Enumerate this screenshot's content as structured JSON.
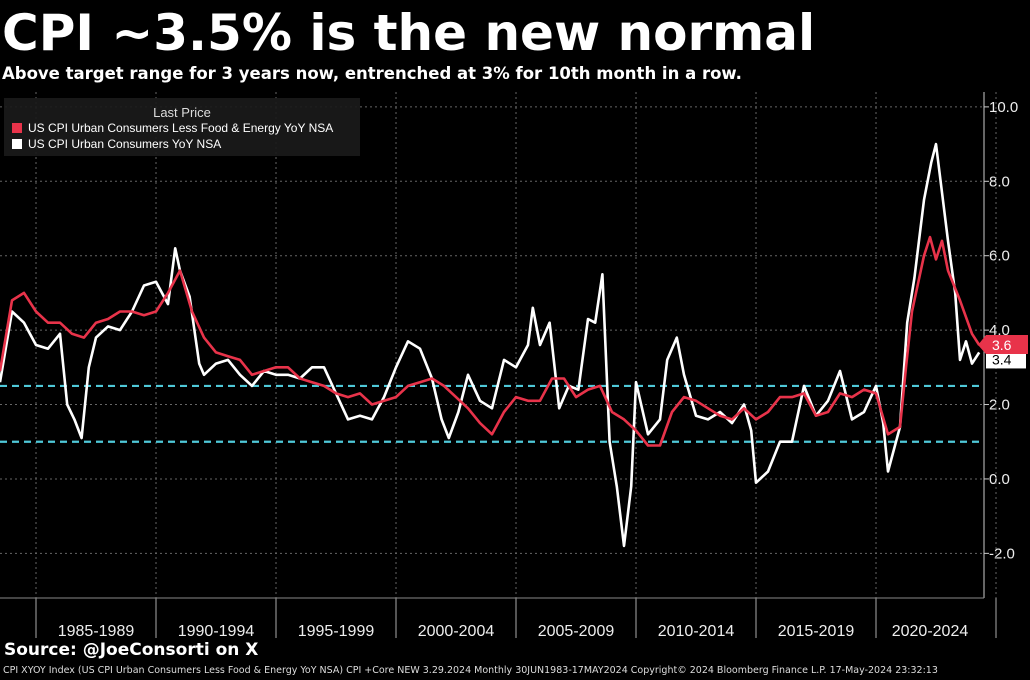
{
  "header": {
    "title": "CPI ~3.5% is the new normal",
    "subtitle": "Above target range for 3 years now, entrenched at 3% for 10th month in a row."
  },
  "source": "Source: @JoeConsorti on X",
  "footer": "CPI XYOY Index (US CPI Urban Consumers Less Food & Energy YoY NSA) CPI +Core NEW 3.29.2024  Monthly 30JUN1983-17MAY2024  Copyright© 2024 Bloomberg Finance L.P.  17-May-2024 23:32:13",
  "chart_data": {
    "type": "line",
    "legend": {
      "title": "Last Price",
      "placement": "top-left",
      "entries": [
        "US CPI Urban Consumers Less Food & Energy YoY NSA",
        "US CPI Urban Consumers YoY NSA"
      ]
    },
    "x_tick_labels": [
      "1985-1989",
      "1990-1994",
      "1995-1999",
      "2000-2004",
      "2005-2009",
      "2010-2014",
      "2015-2019",
      "2020-2024"
    ],
    "y_ticks": [
      -2.0,
      0.0,
      2.0,
      4.0,
      6.0,
      8.0,
      10.0
    ],
    "y_tick_labels": [
      "-2.0",
      "0.0",
      "2.0",
      "4.0",
      "6.0",
      "8.0",
      "10.0"
    ],
    "ylim": [
      -3.2,
      10.4
    ],
    "xlim": [
      1983.5,
      2024.5
    ],
    "grid": true,
    "reference_lines": [
      2.5,
      1.0
    ],
    "last_values": {
      "core": "3.6",
      "headline": "3.4"
    },
    "colors": {
      "core": "#e8334a",
      "headline": "#ffffff",
      "reference": "#4fc8d8",
      "grid": "#666666"
    },
    "series": [
      {
        "name": "US CPI Urban Consumers Less Food & Energy YoY NSA",
        "x": [
          1983.5,
          1984.0,
          1984.5,
          1985.0,
          1985.5,
          1986.0,
          1986.5,
          1987.0,
          1987.5,
          1988.0,
          1988.5,
          1989.0,
          1989.5,
          1990.0,
          1990.5,
          1991.0,
          1991.5,
          1992.0,
          1992.5,
          1993.0,
          1993.5,
          1994.0,
          1994.5,
          1995.0,
          1995.5,
          1996.0,
          1996.5,
          1997.0,
          1997.5,
          1998.0,
          1998.5,
          1999.0,
          1999.5,
          2000.0,
          2000.5,
          2001.0,
          2001.5,
          2002.0,
          2002.5,
          2003.0,
          2003.5,
          2004.0,
          2004.5,
          2005.0,
          2005.5,
          2006.0,
          2006.5,
          2007.0,
          2007.5,
          2008.0,
          2008.5,
          2009.0,
          2009.5,
          2010.0,
          2010.5,
          2011.0,
          2011.5,
          2012.0,
          2012.5,
          2013.0,
          2013.5,
          2014.0,
          2014.5,
          2015.0,
          2015.5,
          2016.0,
          2016.5,
          2017.0,
          2017.5,
          2018.0,
          2018.5,
          2019.0,
          2019.5,
          2020.0,
          2020.5,
          2021.0,
          2021.25,
          2021.5,
          2022.0,
          2022.25,
          2022.5,
          2022.75,
          2023.0,
          2023.5,
          2024.0,
          2024.3
        ],
        "values": [
          2.9,
          4.8,
          5.0,
          4.5,
          4.2,
          4.2,
          3.9,
          3.8,
          4.2,
          4.3,
          4.5,
          4.5,
          4.4,
          4.5,
          5.0,
          5.6,
          4.5,
          3.8,
          3.4,
          3.3,
          3.2,
          2.8,
          2.9,
          3.0,
          3.0,
          2.7,
          2.6,
          2.5,
          2.3,
          2.2,
          2.3,
          2.0,
          2.1,
          2.2,
          2.5,
          2.6,
          2.7,
          2.5,
          2.2,
          1.9,
          1.5,
          1.2,
          1.8,
          2.2,
          2.1,
          2.1,
          2.7,
          2.7,
          2.2,
          2.4,
          2.5,
          1.8,
          1.6,
          1.3,
          0.9,
          0.9,
          1.8,
          2.2,
          2.1,
          1.9,
          1.7,
          1.6,
          1.9,
          1.6,
          1.8,
          2.2,
          2.2,
          2.3,
          1.7,
          1.8,
          2.3,
          2.2,
          2.4,
          2.3,
          1.2,
          1.4,
          3.0,
          4.5,
          6.0,
          6.5,
          5.9,
          6.4,
          5.6,
          4.8,
          3.9,
          3.6
        ]
      },
      {
        "name": "US CPI Urban Consumers YoY NSA",
        "x": [
          1983.5,
          1984.0,
          1984.5,
          1985.0,
          1985.5,
          1986.0,
          1986.3,
          1986.6,
          1986.9,
          1987.2,
          1987.5,
          1988.0,
          1988.5,
          1989.0,
          1989.5,
          1990.0,
          1990.5,
          1990.8,
          1991.0,
          1991.4,
          1991.8,
          1992.0,
          1992.5,
          1993.0,
          1993.5,
          1994.0,
          1994.5,
          1995.0,
          1995.5,
          1996.0,
          1996.5,
          1997.0,
          1997.5,
          1998.0,
          1998.5,
          1999.0,
          1999.5,
          2000.0,
          2000.5,
          2001.0,
          2001.5,
          2001.9,
          2002.2,
          2002.6,
          2003.0,
          2003.5,
          2004.0,
          2004.5,
          2005.0,
          2005.5,
          2005.7,
          2006.0,
          2006.4,
          2006.8,
          2007.2,
          2007.6,
          2008.0,
          2008.3,
          2008.6,
          2008.9,
          2009.2,
          2009.5,
          2009.8,
          2010.0,
          2010.5,
          2011.0,
          2011.3,
          2011.7,
          2012.0,
          2012.5,
          2013.0,
          2013.5,
          2014.0,
          2014.5,
          2014.8,
          2015.0,
          2015.5,
          2016.0,
          2016.5,
          2017.0,
          2017.5,
          2018.0,
          2018.5,
          2019.0,
          2019.5,
          2020.0,
          2020.3,
          2020.5,
          2021.0,
          2021.3,
          2021.6,
          2022.0,
          2022.3,
          2022.5,
          2022.75,
          2023.0,
          2023.3,
          2023.5,
          2023.75,
          2024.0,
          2024.3
        ],
        "values": [
          2.6,
          4.5,
          4.2,
          3.6,
          3.5,
          3.9,
          2.0,
          1.6,
          1.1,
          3.0,
          3.8,
          4.1,
          4.0,
          4.5,
          5.2,
          5.3,
          4.7,
          6.2,
          5.6,
          4.9,
          3.1,
          2.8,
          3.1,
          3.2,
          2.8,
          2.5,
          2.9,
          2.8,
          2.8,
          2.7,
          3.0,
          3.0,
          2.3,
          1.6,
          1.7,
          1.6,
          2.2,
          3.0,
          3.7,
          3.5,
          2.7,
          1.6,
          1.1,
          1.8,
          2.8,
          2.1,
          1.9,
          3.2,
          3.0,
          3.6,
          4.6,
          3.6,
          4.2,
          1.9,
          2.5,
          2.4,
          4.3,
          4.2,
          5.5,
          1.0,
          -0.2,
          -1.8,
          -0.2,
          2.6,
          1.2,
          1.6,
          3.2,
          3.8,
          2.8,
          1.7,
          1.6,
          1.8,
          1.5,
          2.0,
          1.3,
          -0.1,
          0.2,
          1.0,
          1.0,
          2.5,
          1.7,
          2.1,
          2.9,
          1.6,
          1.8,
          2.5,
          1.5,
          0.2,
          1.4,
          4.2,
          5.4,
          7.5,
          8.5,
          9.0,
          7.7,
          6.4,
          5.0,
          3.2,
          3.7,
          3.1,
          3.4
        ]
      }
    ]
  }
}
